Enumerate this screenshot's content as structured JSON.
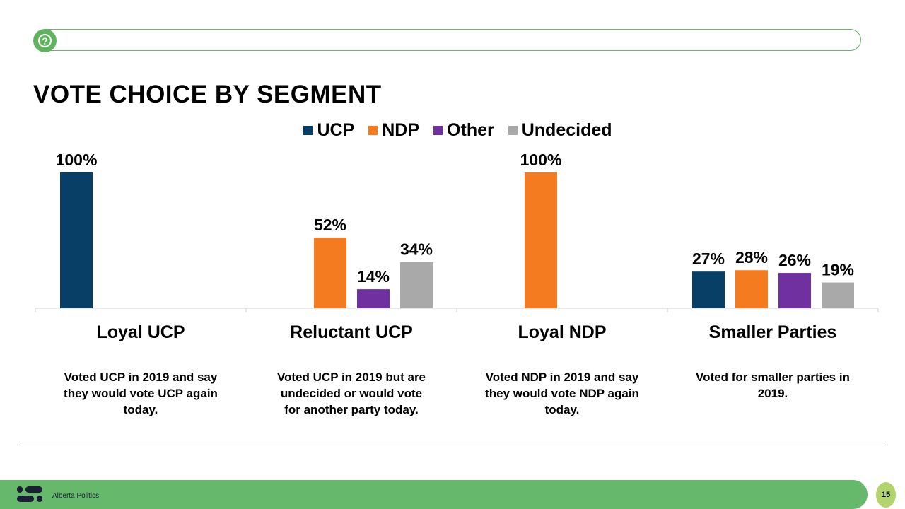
{
  "title": "VOTE CHOICE BY SEGMENT",
  "footer": {
    "brand": "Alberta Politics",
    "page": "15"
  },
  "chart_data": {
    "type": "bar",
    "categories": [
      "Loyal UCP",
      "Reluctant UCP",
      "Loyal NDP",
      "Smaller Parties"
    ],
    "series": [
      {
        "name": "UCP",
        "color": "#073f66",
        "values": [
          100,
          null,
          null,
          27
        ]
      },
      {
        "name": "NDP",
        "color": "#f47b20",
        "values": [
          null,
          52,
          100,
          28
        ]
      },
      {
        "name": "Other",
        "color": "#7030a0",
        "values": [
          null,
          14,
          null,
          26
        ]
      },
      {
        "name": "Undecided",
        "color": "#a9a9a9",
        "values": [
          null,
          34,
          null,
          19
        ]
      }
    ],
    "value_suffix": "%",
    "ylim": [
      0,
      100
    ],
    "grid": false,
    "legend": "top",
    "descriptions": [
      "Voted UCP in 2019 and say they would vote UCP again today.",
      "Voted UCP in 2019 but are undecided or would vote for another party today.",
      "Voted NDP in 2019 and say they would vote NDP again today.",
      "Voted for smaller parties in 2019."
    ]
  }
}
